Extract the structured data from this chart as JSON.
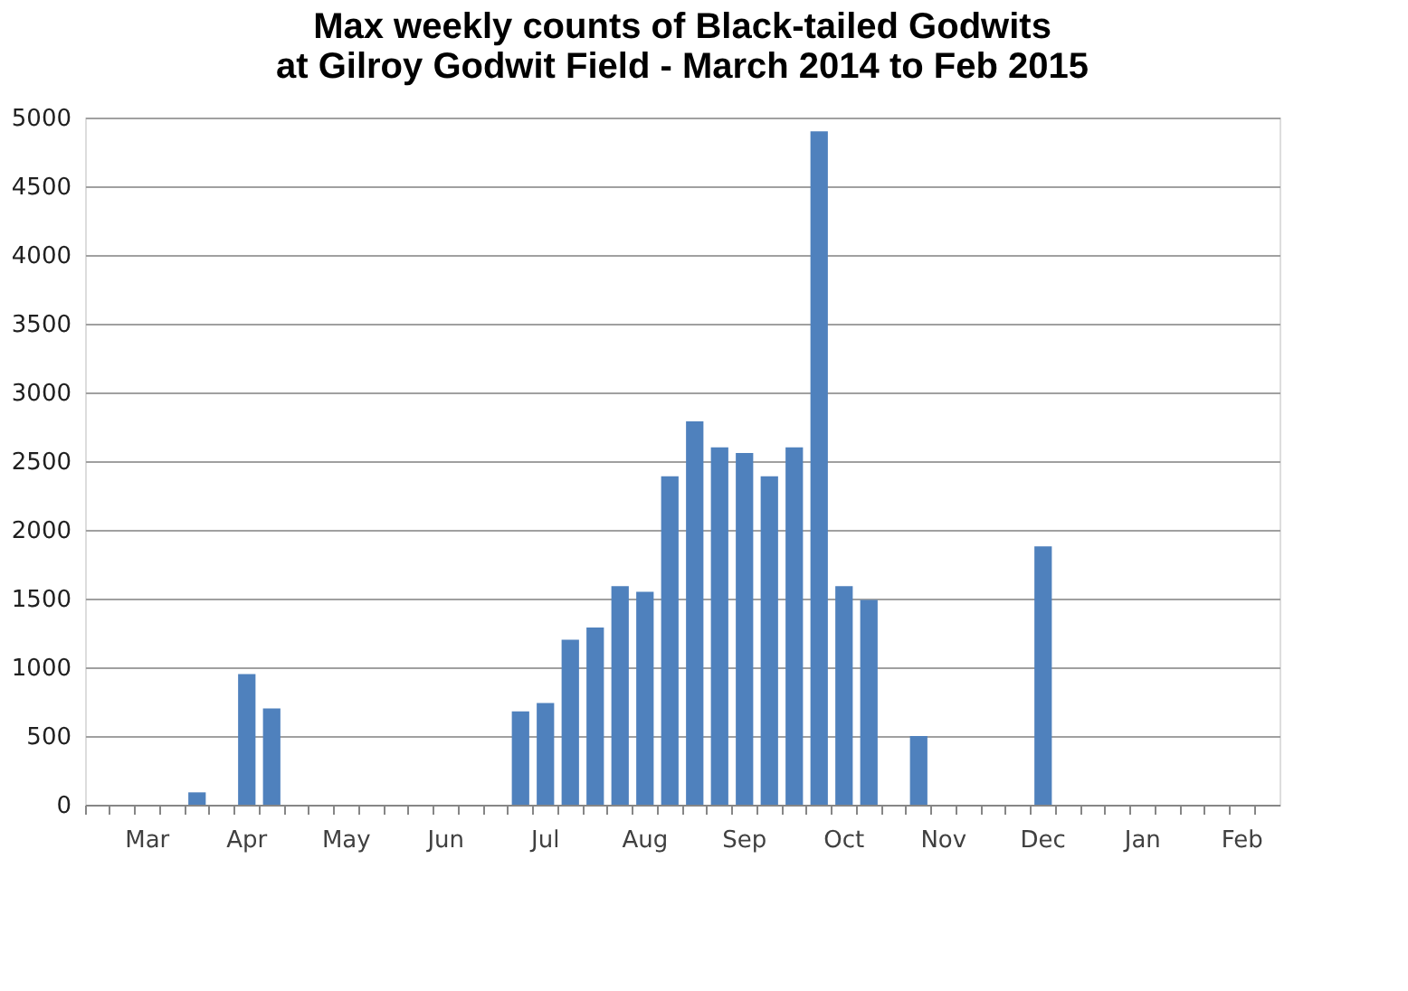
{
  "chart_data": {
    "type": "bar",
    "title": [
      "Max weekly counts of Black-tailed Godwits",
      "at Gilroy Godwit Field - March 2014 to Feb 2015"
    ],
    "categories": [
      null,
      null,
      "Mar",
      null,
      null,
      null,
      "Apr",
      null,
      null,
      null,
      "May",
      null,
      null,
      null,
      "Jun",
      null,
      null,
      null,
      "Jul",
      null,
      null,
      null,
      "Aug",
      null,
      null,
      null,
      "Sep",
      null,
      null,
      null,
      "Oct",
      null,
      null,
      null,
      "Nov",
      null,
      null,
      null,
      "Dec",
      null,
      null,
      null,
      "Jan",
      null,
      null,
      null,
      "Feb",
      null
    ],
    "values": [
      0,
      0,
      0,
      0,
      90,
      0,
      950,
      700,
      0,
      0,
      0,
      0,
      0,
      0,
      0,
      0,
      0,
      680,
      740,
      1200,
      1290,
      1590,
      1550,
      2390,
      2790,
      2600,
      2560,
      2390,
      2600,
      4900,
      1590,
      1490,
      0,
      500,
      0,
      0,
      0,
      0,
      1880,
      0,
      0,
      0,
      0,
      0,
      0,
      0,
      0,
      0
    ],
    "color": "#4f81bd",
    "ylim": [
      0,
      5000
    ],
    "yticks": [
      0,
      500,
      1000,
      1500,
      2000,
      2500,
      3000,
      3500,
      4000,
      4500,
      5000
    ],
    "grid": "y"
  }
}
